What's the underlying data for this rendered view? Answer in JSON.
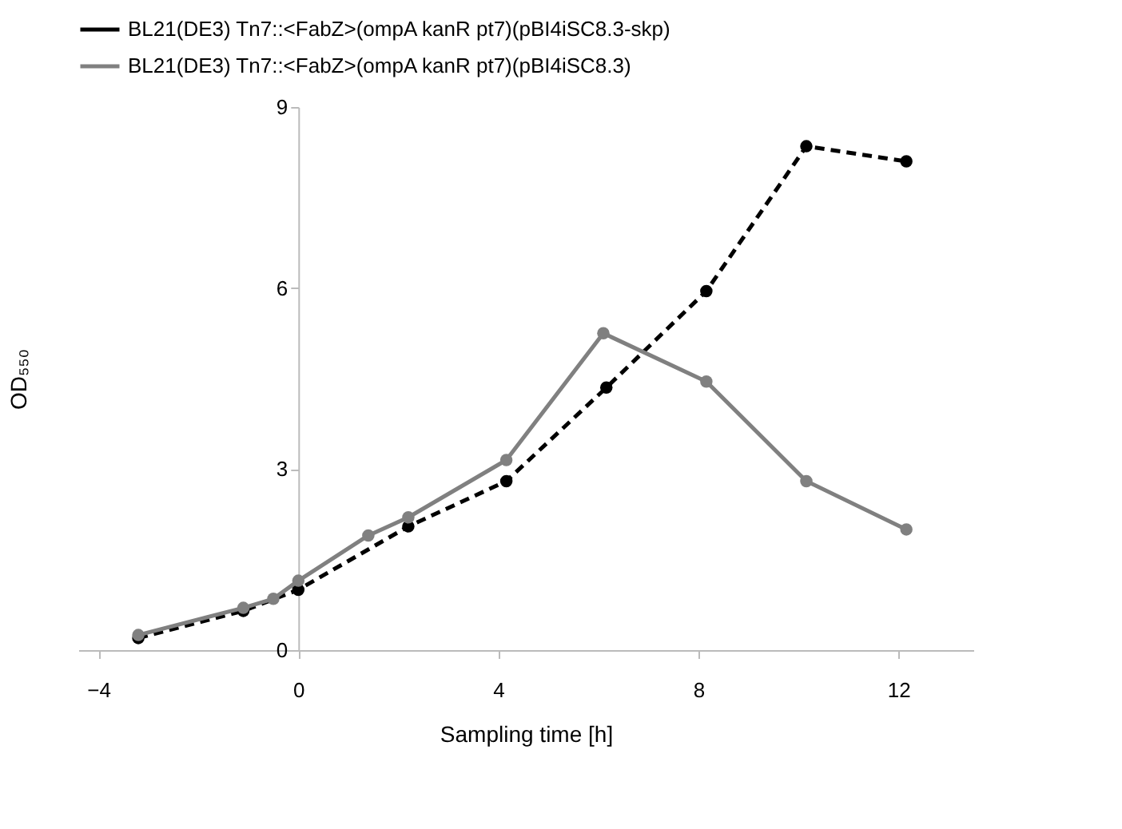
{
  "chart_data": {
    "type": "line",
    "xlabel": "Sampling time [h]",
    "ylabel": "OD₅₅₀",
    "xlim": [
      -4.4,
      13.5
    ],
    "xticks": [
      -4,
      0,
      4,
      8,
      12
    ],
    "ylim": [
      0,
      9
    ],
    "yticks": [
      0,
      3,
      6,
      9
    ],
    "grid": false,
    "legend": "top",
    "marker": "circle",
    "series": [
      {
        "name": "BL21(DE3) Tn7::<FabZ>(ompA kanR pt7)(pBI4iSC8.3-skp)",
        "color": "#000000",
        "line_style": "dashed",
        "x": [
          -3.2,
          -1.1,
          0,
          2.2,
          4.16,
          6.16,
          8.16,
          10.16,
          12.16
        ],
        "values": [
          0.2,
          0.65,
          1.0,
          2.05,
          2.8,
          4.35,
          5.95,
          8.35,
          8.1
        ]
      },
      {
        "name": "BL21(DE3) Tn7::<FabZ>(ompA kanR pt7)(pBI4iSC8.3)",
        "color": "#808080",
        "line_style": "solid",
        "x": [
          -3.2,
          -1.1,
          -0.5,
          0,
          1.4,
          2.2,
          4.16,
          6.1,
          8.16,
          10.16,
          12.16
        ],
        "values": [
          0.25,
          0.7,
          0.85,
          1.15,
          1.9,
          2.2,
          3.15,
          5.25,
          4.45,
          2.8,
          2.0
        ]
      }
    ]
  }
}
